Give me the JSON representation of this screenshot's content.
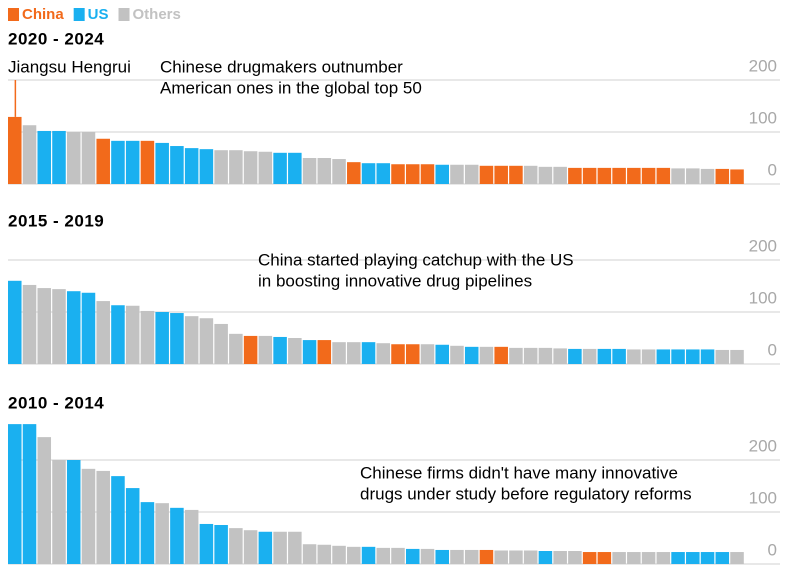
{
  "legend": [
    {
      "name": "China",
      "color": "#f26a1b"
    },
    {
      "name": "US",
      "color": "#1ab0f0"
    },
    {
      "name": "Others",
      "color": "#c2c2c2"
    }
  ],
  "chart_data": [
    {
      "type": "bar",
      "title": "2020 - 2024",
      "annotation": [
        "Chinese drugmakers outnumber",
        "American ones in the global top 50"
      ],
      "highlight": "Jiangsu Hengrui",
      "ylim": [
        0,
        245
      ],
      "yticks": [
        0,
        100,
        200
      ],
      "grid": true,
      "values": [
        129,
        113,
        102,
        102,
        100,
        100,
        87,
        83,
        83,
        83,
        79,
        73,
        69,
        67,
        65,
        65,
        63,
        62,
        60,
        60,
        50,
        50,
        48,
        42,
        40,
        40,
        38,
        38,
        38,
        37,
        37,
        37,
        35,
        35,
        35,
        35,
        33,
        33,
        31,
        31,
        31,
        31,
        31,
        31,
        31,
        30,
        30,
        29,
        29,
        28
      ],
      "colors": [
        "#f26a1b",
        "#c2c2c2",
        "#1ab0f0",
        "#1ab0f0",
        "#c2c2c2",
        "#c2c2c2",
        "#f26a1b",
        "#1ab0f0",
        "#1ab0f0",
        "#f26a1b",
        "#1ab0f0",
        "#1ab0f0",
        "#1ab0f0",
        "#1ab0f0",
        "#c2c2c2",
        "#c2c2c2",
        "#c2c2c2",
        "#c2c2c2",
        "#1ab0f0",
        "#1ab0f0",
        "#c2c2c2",
        "#c2c2c2",
        "#c2c2c2",
        "#f26a1b",
        "#1ab0f0",
        "#1ab0f0",
        "#f26a1b",
        "#f26a1b",
        "#f26a1b",
        "#1ab0f0",
        "#c2c2c2",
        "#c2c2c2",
        "#f26a1b",
        "#f26a1b",
        "#f26a1b",
        "#c2c2c2",
        "#c2c2c2",
        "#c2c2c2",
        "#f26a1b",
        "#f26a1b",
        "#f26a1b",
        "#f26a1b",
        "#f26a1b",
        "#f26a1b",
        "#f26a1b",
        "#c2c2c2",
        "#c2c2c2",
        "#c2c2c2",
        "#f26a1b",
        "#f26a1b"
      ]
    },
    {
      "type": "bar",
      "title": "2015 - 2019",
      "annotation": [
        "China started playing catchup with the US",
        "in boosting innovative drug pipelines"
      ],
      "ylim": [
        0,
        245
      ],
      "yticks": [
        0,
        100,
        200
      ],
      "grid": true,
      "values": [
        160,
        152,
        146,
        144,
        140,
        137,
        121,
        113,
        112,
        102,
        100,
        98,
        92,
        88,
        77,
        58,
        54,
        54,
        52,
        50,
        46,
        46,
        42,
        42,
        42,
        40,
        38,
        38,
        38,
        37,
        35,
        33,
        33,
        33,
        31,
        31,
        31,
        30,
        29,
        29,
        29,
        29,
        28,
        28,
        28,
        28,
        28,
        28,
        27,
        27
      ],
      "colors": [
        "#1ab0f0",
        "#c2c2c2",
        "#c2c2c2",
        "#c2c2c2",
        "#1ab0f0",
        "#1ab0f0",
        "#c2c2c2",
        "#1ab0f0",
        "#c2c2c2",
        "#c2c2c2",
        "#1ab0f0",
        "#1ab0f0",
        "#c2c2c2",
        "#c2c2c2",
        "#c2c2c2",
        "#c2c2c2",
        "#f26a1b",
        "#c2c2c2",
        "#1ab0f0",
        "#c2c2c2",
        "#1ab0f0",
        "#f26a1b",
        "#c2c2c2",
        "#c2c2c2",
        "#1ab0f0",
        "#c2c2c2",
        "#f26a1b",
        "#f26a1b",
        "#c2c2c2",
        "#1ab0f0",
        "#c2c2c2",
        "#1ab0f0",
        "#c2c2c2",
        "#f26a1b",
        "#c2c2c2",
        "#c2c2c2",
        "#c2c2c2",
        "#c2c2c2",
        "#1ab0f0",
        "#c2c2c2",
        "#1ab0f0",
        "#1ab0f0",
        "#c2c2c2",
        "#c2c2c2",
        "#1ab0f0",
        "#1ab0f0",
        "#1ab0f0",
        "#1ab0f0",
        "#c2c2c2",
        "#c2c2c2"
      ]
    },
    {
      "type": "bar",
      "title": "2010 - 2014",
      "annotation": [
        "Chinese firms didn't have many innovative",
        "drugs under study before regulatory reforms"
      ],
      "ylim": [
        0,
        270
      ],
      "yticks": [
        0,
        100,
        200
      ],
      "grid": true,
      "values": [
        269,
        269,
        244,
        200,
        200,
        183,
        179,
        169,
        146,
        119,
        117,
        108,
        104,
        77,
        75,
        69,
        65,
        62,
        62,
        62,
        38,
        37,
        35,
        33,
        33,
        31,
        31,
        29,
        29,
        27,
        27,
        27,
        27,
        26,
        26,
        26,
        25,
        25,
        25,
        23,
        23,
        23,
        23,
        23,
        23,
        23,
        23,
        23,
        23,
        23
      ],
      "colors": [
        "#1ab0f0",
        "#1ab0f0",
        "#c2c2c2",
        "#c2c2c2",
        "#1ab0f0",
        "#c2c2c2",
        "#c2c2c2",
        "#1ab0f0",
        "#1ab0f0",
        "#1ab0f0",
        "#c2c2c2",
        "#1ab0f0",
        "#c2c2c2",
        "#1ab0f0",
        "#1ab0f0",
        "#c2c2c2",
        "#c2c2c2",
        "#1ab0f0",
        "#c2c2c2",
        "#c2c2c2",
        "#c2c2c2",
        "#c2c2c2",
        "#c2c2c2",
        "#c2c2c2",
        "#1ab0f0",
        "#c2c2c2",
        "#c2c2c2",
        "#1ab0f0",
        "#c2c2c2",
        "#1ab0f0",
        "#c2c2c2",
        "#c2c2c2",
        "#f26a1b",
        "#c2c2c2",
        "#c2c2c2",
        "#c2c2c2",
        "#1ab0f0",
        "#c2c2c2",
        "#c2c2c2",
        "#f26a1b",
        "#f26a1b",
        "#c2c2c2",
        "#c2c2c2",
        "#c2c2c2",
        "#c2c2c2",
        "#1ab0f0",
        "#1ab0f0",
        "#1ab0f0",
        "#1ab0f0",
        "#c2c2c2"
      ]
    }
  ]
}
